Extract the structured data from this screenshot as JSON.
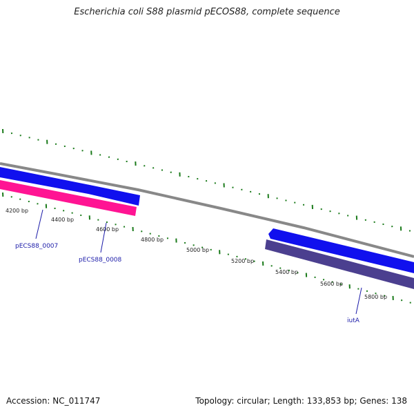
{
  "title": "Escherichia coli S88 plasmid pECOS88, complete sequence",
  "footer": {
    "accession": "Accession: NC_011747",
    "summary": "Topology: circular; Length: 133,853 bp; Genes: 138"
  },
  "ruler": {
    "tick_labels": [
      "4200 bp",
      "4400 bp",
      "4600 bp",
      "4800 bp",
      "5000 bp",
      "5200 bp",
      "5400 bp",
      "5600 bp",
      "5800 bp"
    ],
    "major_tick_color": "#1a7a1a"
  },
  "backbone_color": "#888888",
  "features": [
    {
      "label": "",
      "strand": "+",
      "color": "#1010ee",
      "type": "CDS"
    },
    {
      "label": "",
      "strand": "-",
      "color": "#ff1493",
      "type": "gene"
    },
    {
      "label": "",
      "strand": "+",
      "color": "#1010ee",
      "type": "CDS"
    },
    {
      "label": "",
      "strand": "-",
      "color": "#4b3f8f",
      "type": "gene"
    }
  ],
  "gene_labels": [
    "pECS88_0007",
    "pECS88_0008",
    "iutA"
  ]
}
